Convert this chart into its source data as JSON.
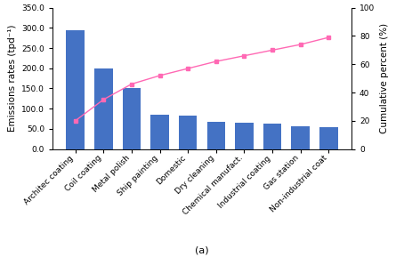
{
  "categories": [
    "Architec coating",
    "Coil coating",
    "Metal polish",
    "Ship painting",
    "Domestic",
    "Dry cleaning",
    "Chemical manufact.",
    "Industrial coating",
    "Gas station",
    "Non-industrial coat"
  ],
  "bar_values": [
    295,
    200,
    152,
    85,
    83,
    67,
    65,
    62,
    56,
    55
  ],
  "cumulative_percent": [
    20,
    35,
    46,
    52,
    57,
    62,
    66,
    70,
    74,
    79
  ],
  "bar_color": "#4472C4",
  "line_color": "#FF69B4",
  "ylabel_left": "Emissions rates (tpd⁻¹)",
  "ylabel_right": "Cumulative percent (%)",
  "xlabel": "(a)",
  "ylim_left": [
    0,
    350
  ],
  "yticks_left": [
    0.0,
    50.0,
    100.0,
    150.0,
    200.0,
    250.0,
    300.0,
    350.0
  ],
  "ylim_right": [
    0,
    100
  ],
  "yticks_right": [
    0,
    20,
    40,
    60,
    80,
    100
  ],
  "background_color": "#ffffff",
  "tick_fontsize": 6.5,
  "label_fontsize": 7.5,
  "xlabel_fontsize": 8
}
